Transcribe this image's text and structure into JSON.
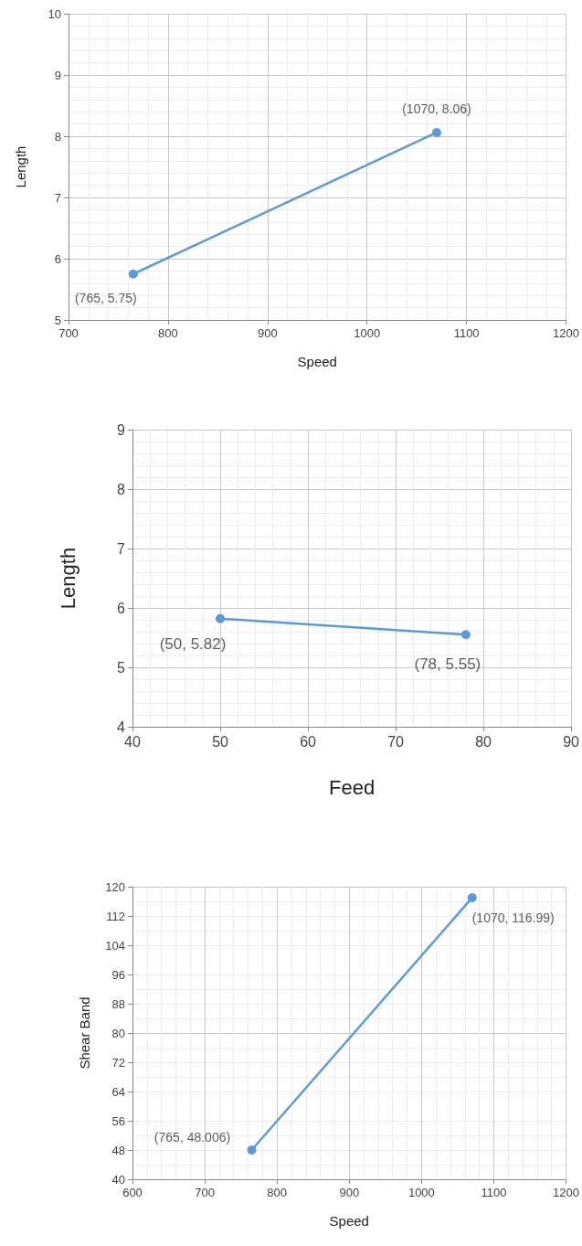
{
  "chart_data": [
    {
      "type": "line",
      "xlabel": "Speed",
      "ylabel": "Length",
      "x": [
        765,
        1070
      ],
      "values": [
        5.75,
        8.06
      ],
      "color": "#5b9bd5",
      "marker": "circle",
      "xlim": [
        700,
        1200
      ],
      "xticks": [
        700,
        800,
        900,
        1000,
        1100,
        1200
      ],
      "ylim": [
        5,
        10
      ],
      "yticks": [
        5,
        6,
        7,
        8,
        9,
        10
      ],
      "grid": true,
      "annotations": [
        {
          "text": "(765, 5.75)",
          "x": 765,
          "y": 5.75
        },
        {
          "text": "(1070, 8.06)",
          "x": 1070,
          "y": 8.06
        }
      ]
    },
    {
      "type": "line",
      "xlabel": "Feed",
      "ylabel": "Length",
      "x": [
        50,
        78
      ],
      "values": [
        5.82,
        5.55
      ],
      "color": "#5b9bd5",
      "marker": "circle",
      "xlim": [
        40,
        90
      ],
      "xticks": [
        40,
        50,
        60,
        70,
        80,
        90
      ],
      "ylim": [
        4,
        9
      ],
      "yticks": [
        4,
        5,
        6,
        7,
        8,
        9
      ],
      "grid": true,
      "annotations": [
        {
          "text": "(50, 5.82)",
          "x": 50,
          "y": 5.82
        },
        {
          "text": "(78, 5.55)",
          "x": 78,
          "y": 5.55
        }
      ]
    },
    {
      "type": "line",
      "xlabel": "Speed",
      "ylabel": "Shear Band",
      "x": [
        765,
        1070
      ],
      "values": [
        48.006,
        116.99
      ],
      "color": "#5b9bd5",
      "marker": "circle",
      "xlim": [
        600,
        1200
      ],
      "xticks": [
        600,
        700,
        800,
        900,
        1000,
        1100,
        1200
      ],
      "ylim": [
        40,
        120
      ],
      "yticks": [
        40,
        48,
        56,
        64,
        72,
        80,
        88,
        96,
        104,
        112,
        120
      ],
      "grid": true,
      "annotations": [
        {
          "text": "(765, 48.006)",
          "x": 765,
          "y": 48.006
        },
        {
          "text": "(1070, 116.99)",
          "x": 1070,
          "y": 116.99
        }
      ]
    }
  ]
}
